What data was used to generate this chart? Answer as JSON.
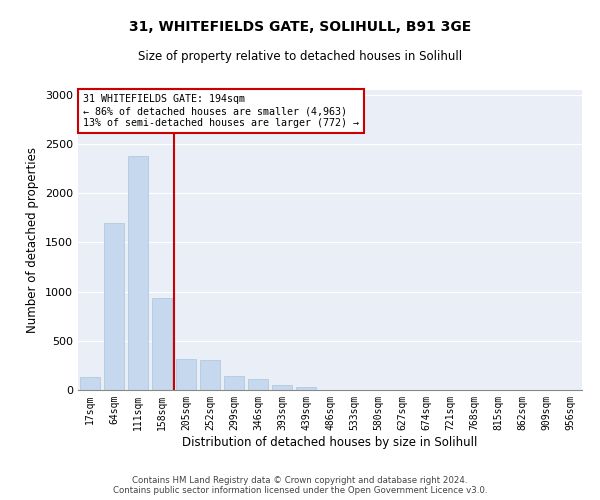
{
  "title1": "31, WHITEFIELDS GATE, SOLIHULL, B91 3GE",
  "title2": "Size of property relative to detached houses in Solihull",
  "xlabel": "Distribution of detached houses by size in Solihull",
  "ylabel": "Number of detached properties",
  "categories": [
    "17sqm",
    "64sqm",
    "111sqm",
    "158sqm",
    "205sqm",
    "252sqm",
    "299sqm",
    "346sqm",
    "393sqm",
    "439sqm",
    "486sqm",
    "533sqm",
    "580sqm",
    "627sqm",
    "674sqm",
    "721sqm",
    "768sqm",
    "815sqm",
    "862sqm",
    "909sqm",
    "956sqm"
  ],
  "values": [
    130,
    1700,
    2380,
    940,
    320,
    310,
    140,
    110,
    55,
    30,
    0,
    0,
    0,
    0,
    0,
    0,
    0,
    0,
    0,
    0,
    0
  ],
  "bar_color": "#c5d8ed",
  "bar_edge_color": "#a8c4dc",
  "vline_color": "#cc0000",
  "annotation_text": "31 WHITEFIELDS GATE: 194sqm\n← 86% of detached houses are smaller (4,963)\n13% of semi-detached houses are larger (772) →",
  "annotation_box_color": "#cc0000",
  "ylim": [
    0,
    3050
  ],
  "yticks": [
    0,
    500,
    1000,
    1500,
    2000,
    2500,
    3000
  ],
  "bg_color": "#eaeff7",
  "footer1": "Contains HM Land Registry data © Crown copyright and database right 2024.",
  "footer2": "Contains public sector information licensed under the Open Government Licence v3.0."
}
